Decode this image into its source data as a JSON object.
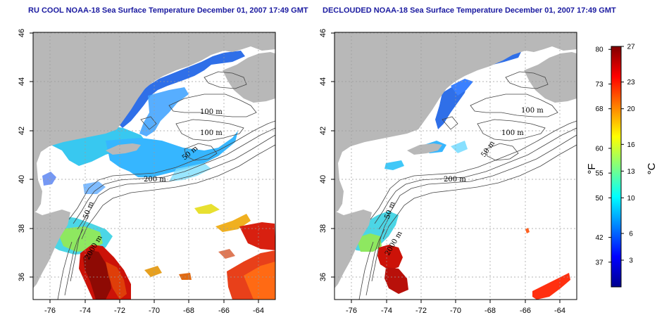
{
  "panels": [
    {
      "title": "RU COOL NOAA-18 Sea Surface Temperature December 01, 2007 17:49 GMT",
      "x_ticks": [
        "-76",
        "-74",
        "-72",
        "-70",
        "-68",
        "-66",
        "-64"
      ],
      "y_ticks": [
        "46",
        "44",
        "42",
        "40",
        "38",
        "36"
      ],
      "contour_labels": [
        "100 m",
        "100 m",
        "50 m",
        "200 m",
        "50 m",
        "2000 m"
      ]
    },
    {
      "title": "DECLOUDED NOAA-18 Sea Surface Temperature December 01, 2007 17:49 GMT",
      "x_ticks": [
        "-76",
        "-74",
        "-72",
        "-70",
        "-68",
        "-66",
        "-64"
      ],
      "y_ticks": [
        "46",
        "44",
        "42",
        "40",
        "38",
        "36"
      ],
      "contour_labels": [
        "100 m",
        "100 m",
        "50 m",
        "200 m",
        "50 m",
        "2000 m"
      ]
    }
  ],
  "colorbar": {
    "fahrenheit_label": "°F",
    "celsius_label": "°C",
    "fahrenheit_ticks": [
      "80",
      "73",
      "68",
      "60",
      "55",
      "50",
      "42",
      "37"
    ],
    "celsius_ticks": [
      "27",
      "23",
      "20",
      "16",
      "13",
      "10",
      "6",
      "3"
    ],
    "min_c": 0,
    "max_c": 27,
    "colors": [
      "#00008f",
      "#0000ff",
      "#0080ff",
      "#00ffff",
      "#80ff80",
      "#ffff00",
      "#ff8000",
      "#ff0000",
      "#800000"
    ]
  },
  "colors": {
    "land": "#b8b8b8",
    "water": "#ffffff",
    "title": "#1a1aa0",
    "grid": "#9a9a9a",
    "contour": "#444444"
  }
}
